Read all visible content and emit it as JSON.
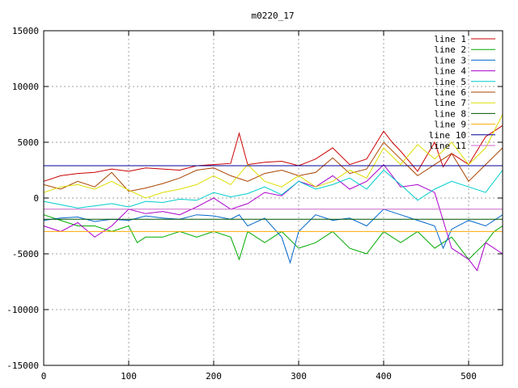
{
  "chart_data": {
    "type": "line",
    "title": "m0220_17",
    "xlabel": "",
    "ylabel": "",
    "xlim": [
      0,
      540
    ],
    "ylim": [
      -15000,
      15000
    ],
    "x_ticks": [
      0,
      100,
      200,
      300,
      400,
      500
    ],
    "y_ticks": [
      -15000,
      -10000,
      -5000,
      0,
      5000,
      10000,
      15000
    ],
    "x_tick_labels": [
      "0",
      "100",
      "200",
      "300",
      "400",
      "500"
    ],
    "y_tick_labels": [
      "-15000",
      "-10000",
      "-5000",
      "0",
      "5000",
      "10000",
      "15000"
    ],
    "grid": true,
    "legend_position": "top-right",
    "series": [
      {
        "name": "line 1",
        "color": "#cc0000",
        "x": [
          0,
          20,
          40,
          60,
          80,
          100,
          120,
          140,
          160,
          180,
          200,
          220,
          230,
          240,
          260,
          280,
          300,
          320,
          340,
          360,
          380,
          400,
          410,
          420,
          440,
          460,
          470,
          480,
          500,
          520,
          540
        ],
        "y": [
          1500,
          2000,
          2200,
          2300,
          2600,
          2400,
          2700,
          2600,
          2500,
          2900,
          3000,
          3100,
          5800,
          3000,
          3200,
          3300,
          2900,
          3500,
          4500,
          3000,
          3500,
          6000,
          5000,
          4200,
          2400,
          5000,
          2800,
          4000,
          3000,
          5500,
          6500
        ]
      },
      {
        "name": "line 2",
        "color": "#00aa00",
        "x": [
          0,
          20,
          40,
          60,
          80,
          100,
          110,
          120,
          140,
          160,
          180,
          200,
          220,
          230,
          240,
          260,
          280,
          300,
          320,
          340,
          360,
          380,
          400,
          420,
          440,
          460,
          480,
          500,
          520,
          530,
          540
        ],
        "y": [
          -1500,
          -2000,
          -2500,
          -2500,
          -3000,
          -2500,
          -4000,
          -3500,
          -3500,
          -3000,
          -3500,
          -3000,
          -3500,
          -5500,
          -3000,
          -4000,
          -3000,
          -4500,
          -4000,
          -3000,
          -4500,
          -5000,
          -3000,
          -4000,
          -3000,
          -4500,
          -3500,
          -5500,
          -4000,
          -3000,
          -2500
        ]
      },
      {
        "name": "line 3",
        "color": "#0066cc",
        "x": [
          0,
          20,
          40,
          60,
          80,
          100,
          120,
          140,
          160,
          180,
          200,
          220,
          230,
          240,
          260,
          280,
          290,
          300,
          320,
          340,
          360,
          380,
          400,
          420,
          440,
          460,
          470,
          480,
          500,
          520,
          540
        ],
        "y": [
          -2000,
          -1800,
          -1700,
          -2100,
          -1900,
          -2000,
          -1600,
          -1800,
          -1900,
          -1500,
          -1600,
          -1900,
          -1500,
          -2500,
          -1800,
          -3500,
          -5800,
          -3000,
          -1500,
          -2000,
          -1800,
          -2500,
          -1000,
          -1500,
          -2000,
          -2500,
          -4500,
          -2800,
          -2000,
          -2500,
          -1500
        ]
      },
      {
        "name": "line 4",
        "color": "#aa00cc",
        "x": [
          0,
          20,
          40,
          60,
          80,
          100,
          120,
          140,
          160,
          180,
          200,
          220,
          240,
          260,
          280,
          300,
          320,
          340,
          360,
          380,
          400,
          420,
          440,
          460,
          480,
          500,
          510,
          520,
          540
        ],
        "y": [
          -2500,
          -3000,
          -2200,
          -3500,
          -2500,
          -1000,
          -1400,
          -1200,
          -1500,
          -800,
          0,
          -1000,
          -500,
          500,
          200,
          1500,
          1000,
          2000,
          800,
          1500,
          3000,
          1000,
          1200,
          500,
          -4500,
          -5500,
          -6500,
          -4000,
          -5000
        ]
      },
      {
        "name": "line 5",
        "color": "#00cccc",
        "x": [
          0,
          20,
          40,
          60,
          80,
          100,
          120,
          140,
          160,
          180,
          200,
          220,
          240,
          260,
          280,
          300,
          320,
          340,
          360,
          380,
          400,
          420,
          440,
          460,
          480,
          500,
          520,
          540
        ],
        "y": [
          -300,
          -600,
          -900,
          -700,
          -500,
          -800,
          -300,
          -400,
          -100,
          -200,
          500,
          100,
          400,
          1000,
          300,
          1500,
          800,
          1200,
          1800,
          800,
          2500,
          1200,
          -200,
          800,
          1500,
          1000,
          500,
          2500
        ]
      },
      {
        "name": "line 6",
        "color": "#aa4400",
        "x": [
          0,
          20,
          40,
          60,
          80,
          100,
          120,
          140,
          160,
          180,
          200,
          220,
          240,
          260,
          280,
          300,
          320,
          340,
          360,
          380,
          400,
          420,
          440,
          460,
          480,
          500,
          520,
          540
        ],
        "y": [
          1200,
          800,
          1500,
          1000,
          2300,
          600,
          900,
          1300,
          1800,
          2500,
          2700,
          2000,
          1500,
          2200,
          2500,
          2000,
          2300,
          3600,
          2200,
          2600,
          5000,
          3500,
          2000,
          3000,
          4000,
          1500,
          3000,
          4500
        ]
      },
      {
        "name": "line 7",
        "color": "#dddd00",
        "x": [
          0,
          20,
          40,
          60,
          80,
          100,
          120,
          140,
          160,
          180,
          200,
          220,
          240,
          260,
          280,
          300,
          320,
          340,
          360,
          380,
          400,
          420,
          440,
          460,
          480,
          500,
          520,
          540
        ],
        "y": [
          500,
          1000,
          1200,
          800,
          1500,
          700,
          0,
          500,
          800,
          1200,
          2000,
          1200,
          3000,
          1500,
          1000,
          2000,
          1000,
          1500,
          2500,
          1800,
          4500,
          3000,
          4800,
          3500,
          5000,
          3000,
          4500,
          7500
        ]
      },
      {
        "name": "line 8",
        "color": "#005500",
        "x": [
          0,
          540
        ],
        "y": [
          -1900,
          -1900
        ]
      },
      {
        "name": "line 9",
        "color": "#ffaa00",
        "x": [
          0,
          540
        ],
        "y": [
          -3000,
          -3000
        ]
      },
      {
        "name": "line 10",
        "color": "#000099",
        "x": [
          0,
          540
        ],
        "y": [
          2900,
          2900
        ]
      },
      {
        "name": "line 11",
        "color": "#cc66cc",
        "x": [
          0,
          540
        ],
        "y": [
          -1000,
          -1000
        ]
      }
    ]
  }
}
